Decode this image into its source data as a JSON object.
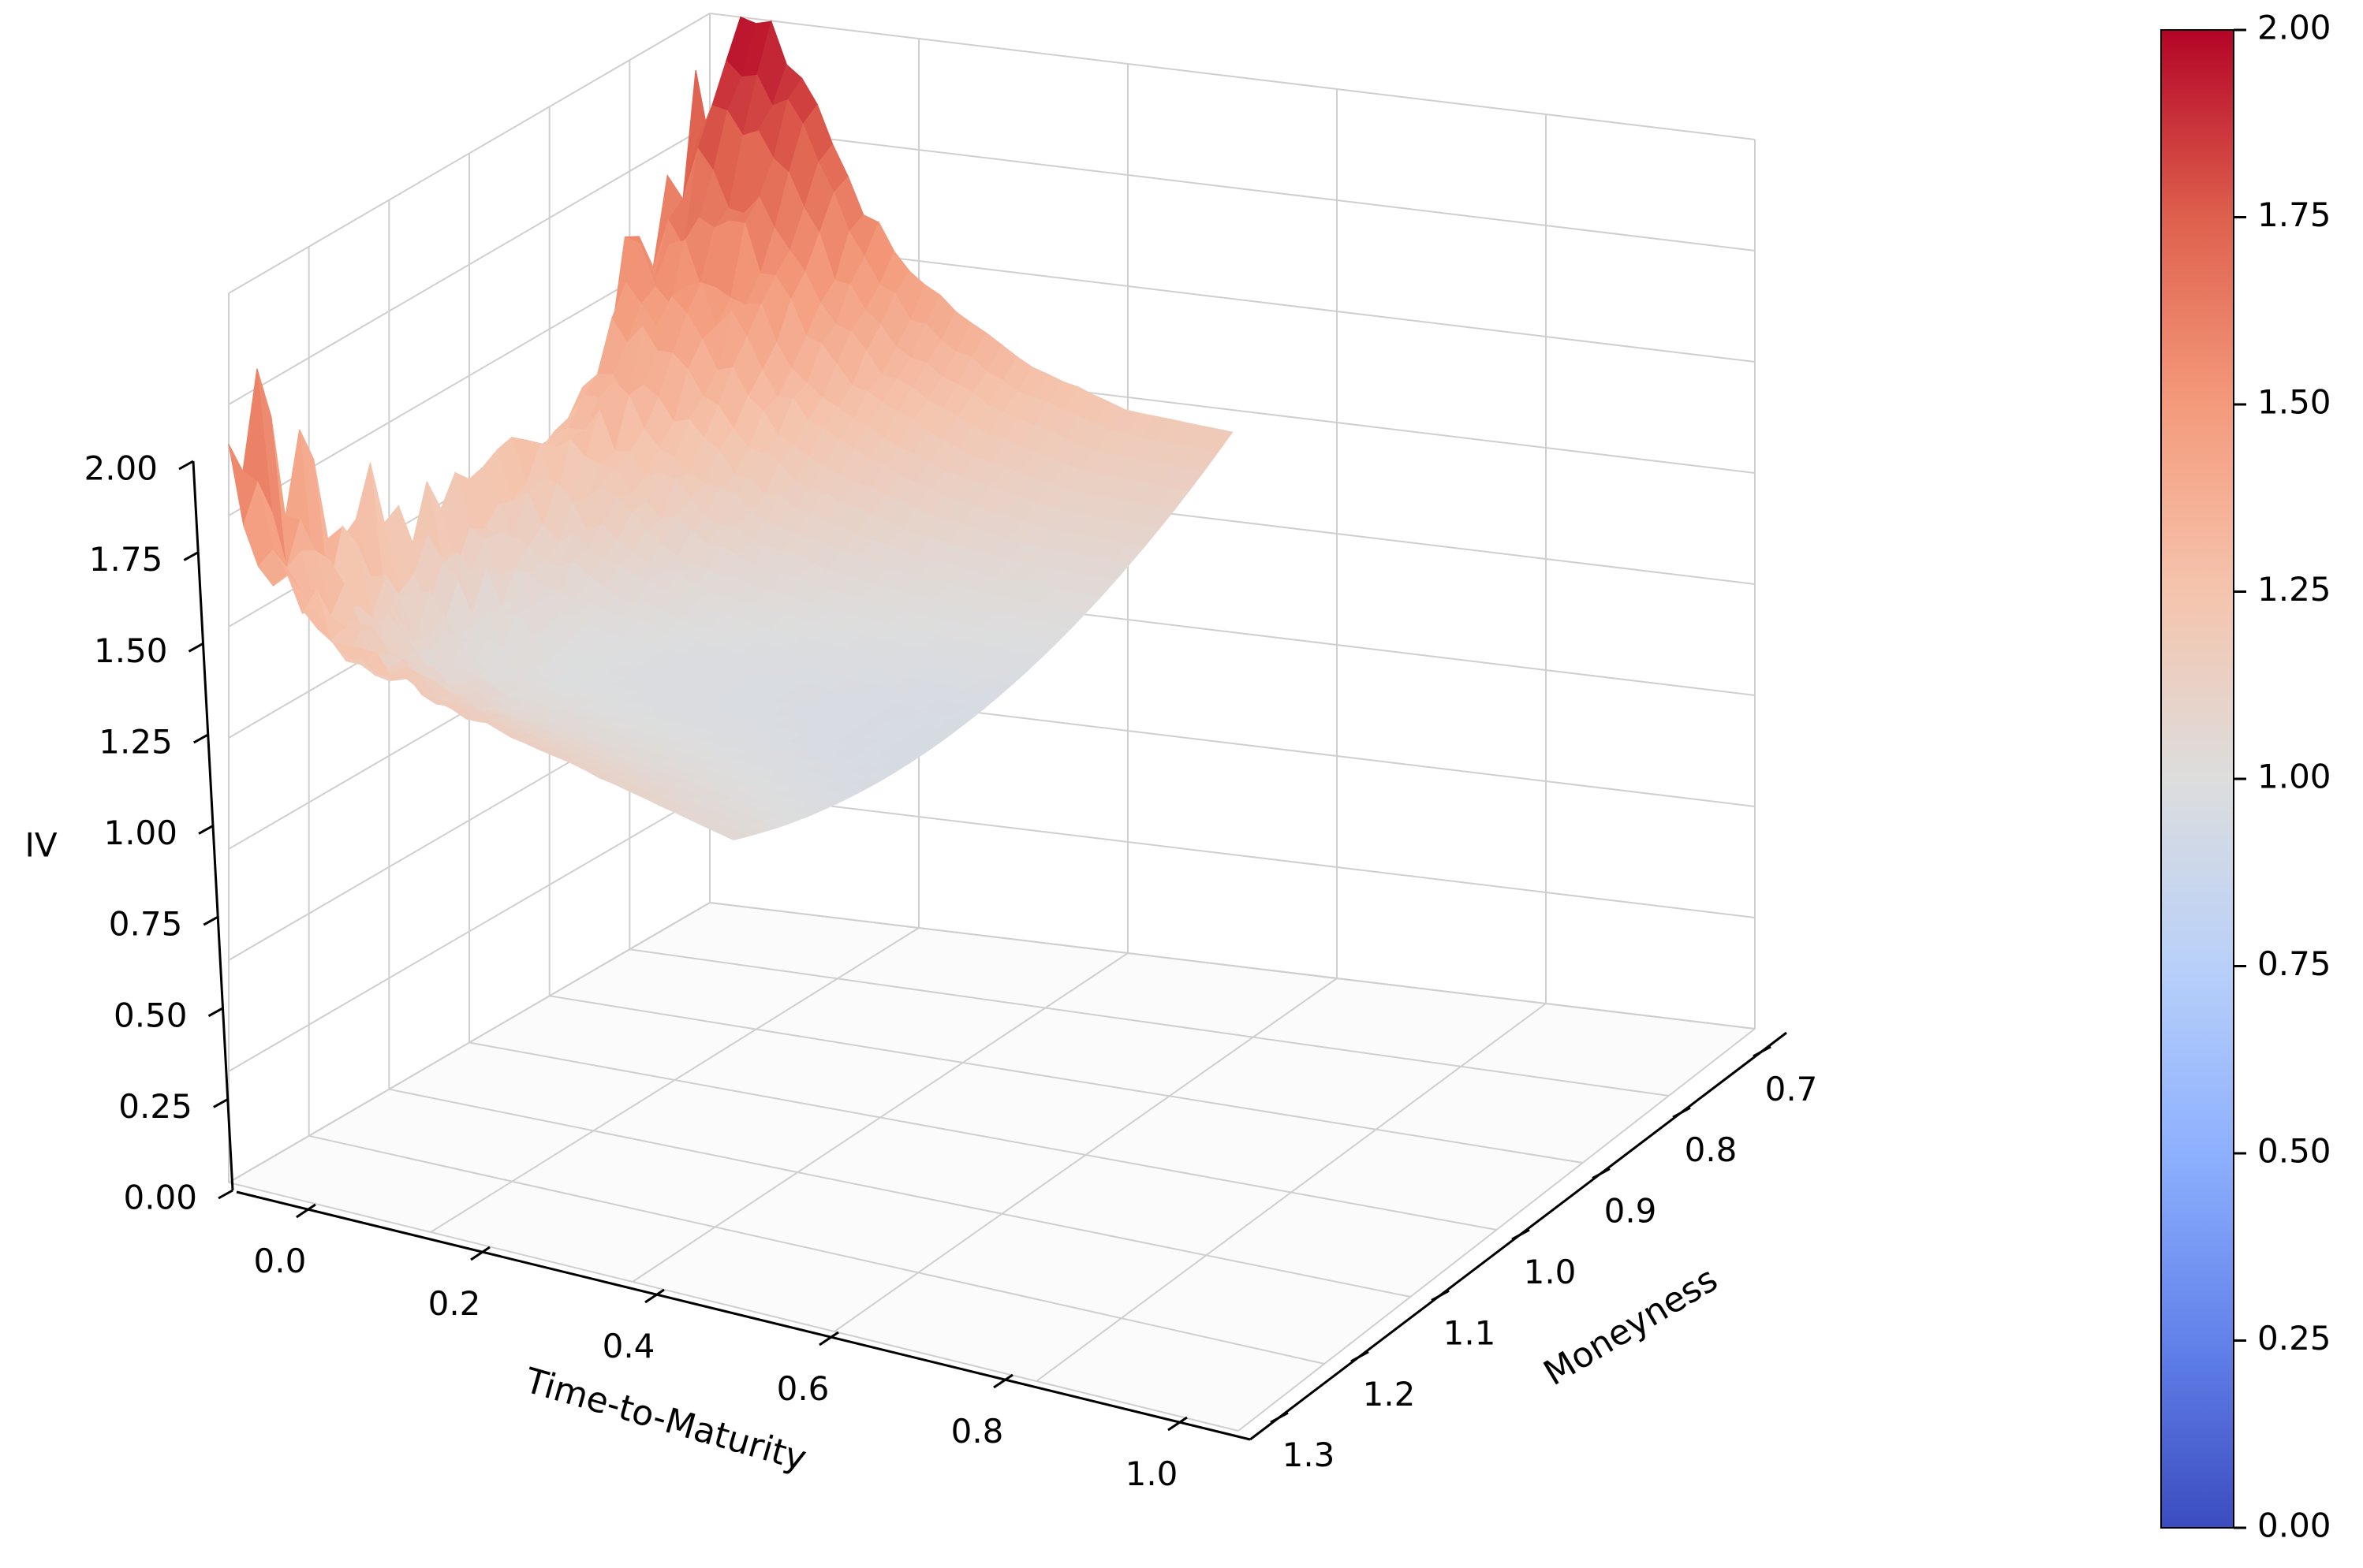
{
  "chart_data": {
    "type": "surface",
    "projection": "3d",
    "colormap": "coolwarm",
    "xlabel": "Time-to-Maturity",
    "ylabel": "Moneyness",
    "zlabel": "IV",
    "xlim": [
      0.0,
      1.0
    ],
    "ylim": [
      0.7,
      1.3
    ],
    "zlim": [
      0.0,
      2.0
    ],
    "xticks": [
      "0.0",
      "0.2",
      "0.4",
      "0.6",
      "0.8",
      "1.0"
    ],
    "yticks": [
      "0.7",
      "0.8",
      "0.9",
      "1.0",
      "1.1",
      "1.2",
      "1.3"
    ],
    "zticks": [
      "0.00",
      "0.25",
      "0.50",
      "0.75",
      "1.00",
      "1.25",
      "1.50",
      "1.75",
      "2.00"
    ],
    "colorbar": {
      "ticks": [
        "0.00",
        "0.25",
        "0.50",
        "0.75",
        "1.00",
        "1.25",
        "1.50",
        "1.75",
        "2.00"
      ],
      "range": [
        0.0,
        2.0
      ]
    },
    "grid": true,
    "surface_extent": {
      "ttm_max": 0.5,
      "moneyness_min": 0.7,
      "moneyness_max": 1.3
    },
    "surface_profile": {
      "ttm": [
        0.0,
        0.02,
        0.05,
        0.1,
        0.15,
        0.2,
        0.3,
        0.4,
        0.5
      ],
      "iv_at_moneyness_0.7": [
        1.85,
        1.92,
        1.95,
        1.85,
        1.6,
        1.45,
        1.3,
        1.22,
        1.2
      ],
      "iv_at_moneyness_1.0": [
        1.25,
        1.15,
        1.1,
        1.05,
        1.02,
        1.0,
        0.98,
        0.97,
        0.96
      ],
      "iv_at_moneyness_1.3": [
        1.8,
        1.55,
        1.4,
        1.3,
        1.25,
        1.2,
        1.15,
        1.1,
        1.05
      ]
    }
  }
}
